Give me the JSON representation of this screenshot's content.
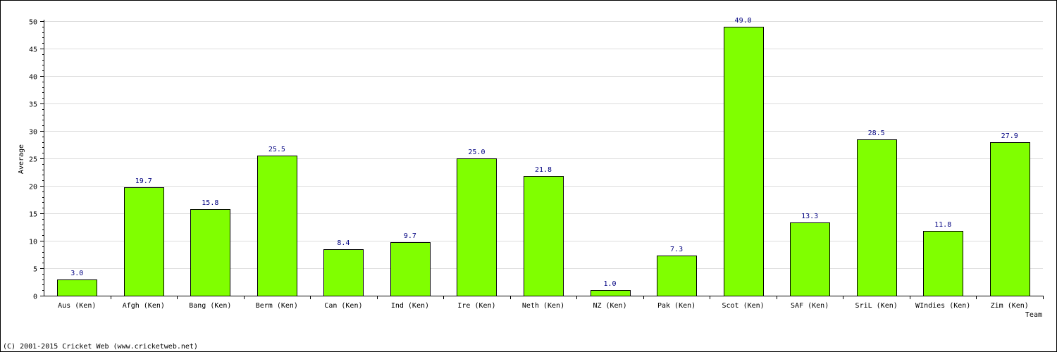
{
  "chart_data": {
    "type": "bar",
    "xlabel": "Team",
    "ylabel": "Average",
    "ylim": [
      0,
      50
    ],
    "yticks": [
      0,
      5,
      10,
      15,
      20,
      25,
      30,
      35,
      40,
      45,
      50
    ],
    "grid": true,
    "bar_color": "#80ff00",
    "bar_border_color": "#000000",
    "value_label_color": "#000080",
    "categories": [
      "Aus (Ken)",
      "Afgh (Ken)",
      "Bang (Ken)",
      "Berm (Ken)",
      "Can (Ken)",
      "Ind (Ken)",
      "Ire (Ken)",
      "Neth (Ken)",
      "NZ (Ken)",
      "Pak (Ken)",
      "Scot (Ken)",
      "SAF (Ken)",
      "SriL (Ken)",
      "WIndies (Ken)",
      "Zim (Ken)"
    ],
    "values": [
      3.0,
      19.7,
      15.8,
      25.5,
      8.4,
      9.7,
      25.0,
      21.8,
      1.0,
      7.3,
      49.0,
      13.3,
      28.5,
      11.8,
      27.9
    ],
    "value_labels": [
      "3.0",
      "19.7",
      "15.8",
      "25.5",
      "8.4",
      "9.7",
      "25.0",
      "21.8",
      "1.0",
      "7.3",
      "49.0",
      "13.3",
      "28.5",
      "11.8",
      "27.9"
    ]
  },
  "footer": {
    "copyright": "(C) 2001-2015 Cricket Web (www.cricketweb.net)"
  }
}
